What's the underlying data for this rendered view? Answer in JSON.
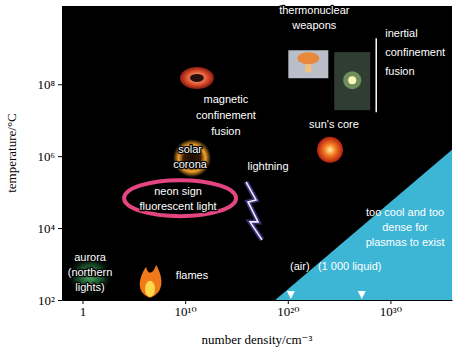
{
  "chart_data": {
    "type": "area",
    "x_label": "number density/cm⁻³",
    "y_label": "temperature/°C",
    "log": true,
    "xlim": [
      0.01,
      1e+36
    ],
    "ylim": [
      100,
      15000000000
    ],
    "xticks": [
      1,
      {
        "value": 10000000000.0,
        "label": "10¹⁰"
      },
      {
        "value": 1e+20,
        "label": "10²⁰"
      },
      {
        "value": 1e+30,
        "label": "10³⁰"
      }
    ],
    "yticks": [
      {
        "value": 100,
        "label": "10²"
      },
      {
        "value": 10000,
        "label": "10⁴"
      },
      {
        "value": 1000000,
        "label": "10⁶"
      },
      {
        "value": 100000000,
        "label": "10⁸"
      }
    ],
    "series": [
      {
        "type": "area",
        "color": "#3db5d5",
        "x": [
          6e+18,
          1e+36
        ],
        "values": [
          100,
          1500000
        ]
      }
    ],
    "annotations": [
      {
        "text": "too cool and too dense for plasmas to exist",
        "x": 2.7e+31,
        "y": 10700
      }
    ],
    "regimes": [
      {
        "text": "thermonuclear weapons",
        "x": 1e+22,
        "y": 360000000
      },
      {
        "text": "inertial confinement fusion",
        "x": 1.9e+26,
        "y": 130000000
      },
      {
        "text": "magnetic confinement fusion",
        "x": 140000000000.0,
        "y": 150000000
      },
      {
        "text": "sun's core",
        "x": 1.3e+24,
        "y": 1500000
      },
      {
        "text": "solar corona",
        "x": 47000000000.0,
        "y": 880000
      },
      {
        "text": "lightning",
        "x": 2.1e+16,
        "y": 32000
      },
      {
        "text": "neon sign fluorescent light",
        "x": 3200000000.0,
        "y": 68000
      },
      {
        "text": "flames",
        "x": 3800000,
        "y": 300
      },
      {
        "text": "aurora (northern lights)",
        "x": 5.4,
        "y": 460
      }
    ],
    "reference_markers": [
      {
        "text": "(air)",
        "x": 2e+20
      },
      {
        "text": "(1 000 liquid)",
        "x": 1.6e+27
      }
    ]
  }
}
